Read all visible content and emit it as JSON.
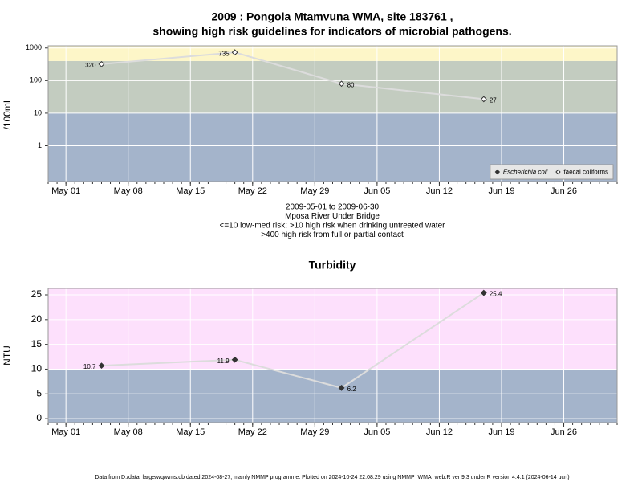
{
  "chart_data": [
    {
      "type": "line",
      "title": "2009 : Pongola Mtamvuna WMA, site 183761 ,",
      "subtitle": "showing high risk guidelines for indicators of microbial pathogens.",
      "ylabel": "/100mL",
      "xlabel": [
        "2009-05-01 to 2009-06-30",
        "Mposa River Under Bridge",
        "<=10 low-med risk; >10 high risk when drinking untreated water",
        ">400 high risk from full or partial contact"
      ],
      "x": [
        "May 05",
        "May 20",
        "Jun 01",
        "Jun 17"
      ],
      "xlim": [
        "Apr 29",
        "Jul 02"
      ],
      "xticks": [
        "May 01",
        "May 08",
        "May 15",
        "May 22",
        "May 29",
        "Jun 05",
        "Jun 12",
        "Jun 19",
        "Jun 26"
      ],
      "log_y": true,
      "ylim": [
        0.08,
        1170
      ],
      "yticks": [
        1,
        10,
        100,
        1000
      ],
      "thresholds": [
        10,
        400
      ],
      "band_colors": [
        "#a4b4cb",
        "#c3ccc0",
        "#fdf6c8"
      ],
      "grid": true,
      "legend": "bottom-right",
      "line_color": "#dcdcdc",
      "series": [
        {
          "name": "Escherichia coli",
          "marker": "filled",
          "color": "#333333",
          "values": [
            null,
            null,
            null,
            null
          ]
        },
        {
          "name": "faecal coliforms",
          "marker": "open",
          "color": "#333333",
          "values": [
            320,
            735,
            80,
            27
          ]
        }
      ]
    },
    {
      "type": "line",
      "title": "Turbidity",
      "ylabel": "NTU",
      "x": [
        "May 05",
        "May 20",
        "Jun 01",
        "Jun 17"
      ],
      "xlim": [
        "Apr 29",
        "Jul 02"
      ],
      "xticks": [
        "May 01",
        "May 08",
        "May 15",
        "May 22",
        "May 29",
        "Jun 05",
        "Jun 12",
        "Jun 19",
        "Jun 26"
      ],
      "log_y": false,
      "ylim": [
        -0.8,
        26.3
      ],
      "yticks": [
        0,
        5,
        10,
        15,
        20,
        25
      ],
      "thresholds": [
        10
      ],
      "band_colors": [
        "#a4b4cb",
        "#fde0fc"
      ],
      "grid": true,
      "line_color": "#dcdcdc",
      "series": [
        {
          "marker": "filled",
          "color": "#333333",
          "values": [
            10.7,
            11.9,
            6.2,
            25.4
          ]
        }
      ]
    }
  ],
  "footer": "Data from D:/data_large/wq/wms.db dated 2024-08-27, mainly NMMP programme. Plotted on 2024-10-24 22:08:29 using NMMP_WMA_web.R ver 9.3 under R version 4.4.1 (2024-06-14 ucrt)"
}
